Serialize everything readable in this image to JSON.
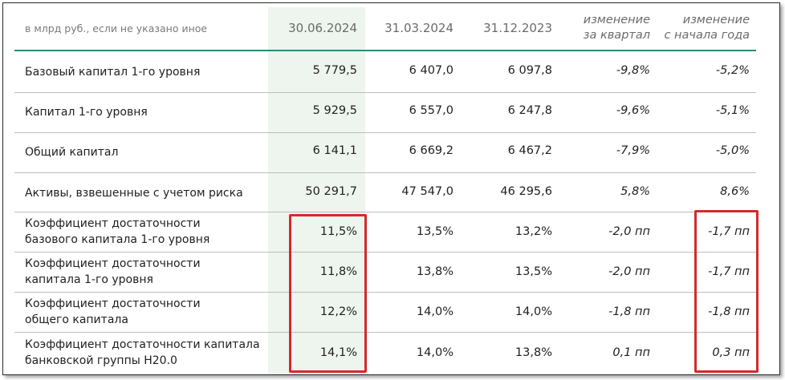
{
  "header": {
    "unit_note": "в млрд руб., если не указано иное",
    "date1": "30.06.2024",
    "date2": "31.03.2024",
    "date3": "31.12.2023",
    "change_q_line1": "изменение",
    "change_q_line2": "за квартал",
    "change_y_line1": "изменение",
    "change_y_line2": "с начала года"
  },
  "rows": [
    {
      "label1": "Базовый капитал 1-го уровня",
      "label2": "",
      "v1": "5 779,5",
      "v2": "6 407,0",
      "v3": "6 097,8",
      "v4": "-9,8%",
      "v5": "-5,2%"
    },
    {
      "label1": "Капитал 1-го уровня",
      "label2": "",
      "v1": "5 929,5",
      "v2": "6 557,0",
      "v3": "6 247,8",
      "v4": "-9,6%",
      "v5": "-5,1%"
    },
    {
      "label1": "Общий капитал",
      "label2": "",
      "v1": "6 141,1",
      "v2": "6 669,2",
      "v3": "6 467,2",
      "v4": "-7,9%",
      "v5": "-5,0%"
    },
    {
      "label1": "Активы, взвешенные с учетом риска",
      "label2": "",
      "v1": "50 291,7",
      "v2": "47 547,0",
      "v3": "46 295,6",
      "v4": "5,8%",
      "v5": "8,6%"
    },
    {
      "label1": "Коэффициент достаточности",
      "label2": "базового капитала 1-го уровня",
      "v1": "11,5%",
      "v2": "13,5%",
      "v3": "13,2%",
      "v4": "-2,0 пп",
      "v5": "-1,7 пп"
    },
    {
      "label1": "Коэффициент достаточности",
      "label2": "капитала 1-го уровня",
      "v1": "11,8%",
      "v2": "13,8%",
      "v3": "13,5%",
      "v4": "-2,0 пп",
      "v5": "-1,7 пп"
    },
    {
      "label1": "Коэффициент достаточности",
      "label2": "общего капитала",
      "v1": "12,2%",
      "v2": "14,0%",
      "v3": "14,0%",
      "v4": "-1,8 пп",
      "v5": "-1,8 пп"
    },
    {
      "label1": "Коэффициент достаточности капитала",
      "label2": "банковской группы Н20.0",
      "v1": "14,1%",
      "v2": "14,0%",
      "v3": "13,8%",
      "v4": "0,1 пп",
      "v5": "0,3 пп"
    }
  ],
  "colors": {
    "accent_line": "#2e8a7a",
    "highlight_column": "#eef4ee",
    "annotation_red": "#d42a2a"
  }
}
